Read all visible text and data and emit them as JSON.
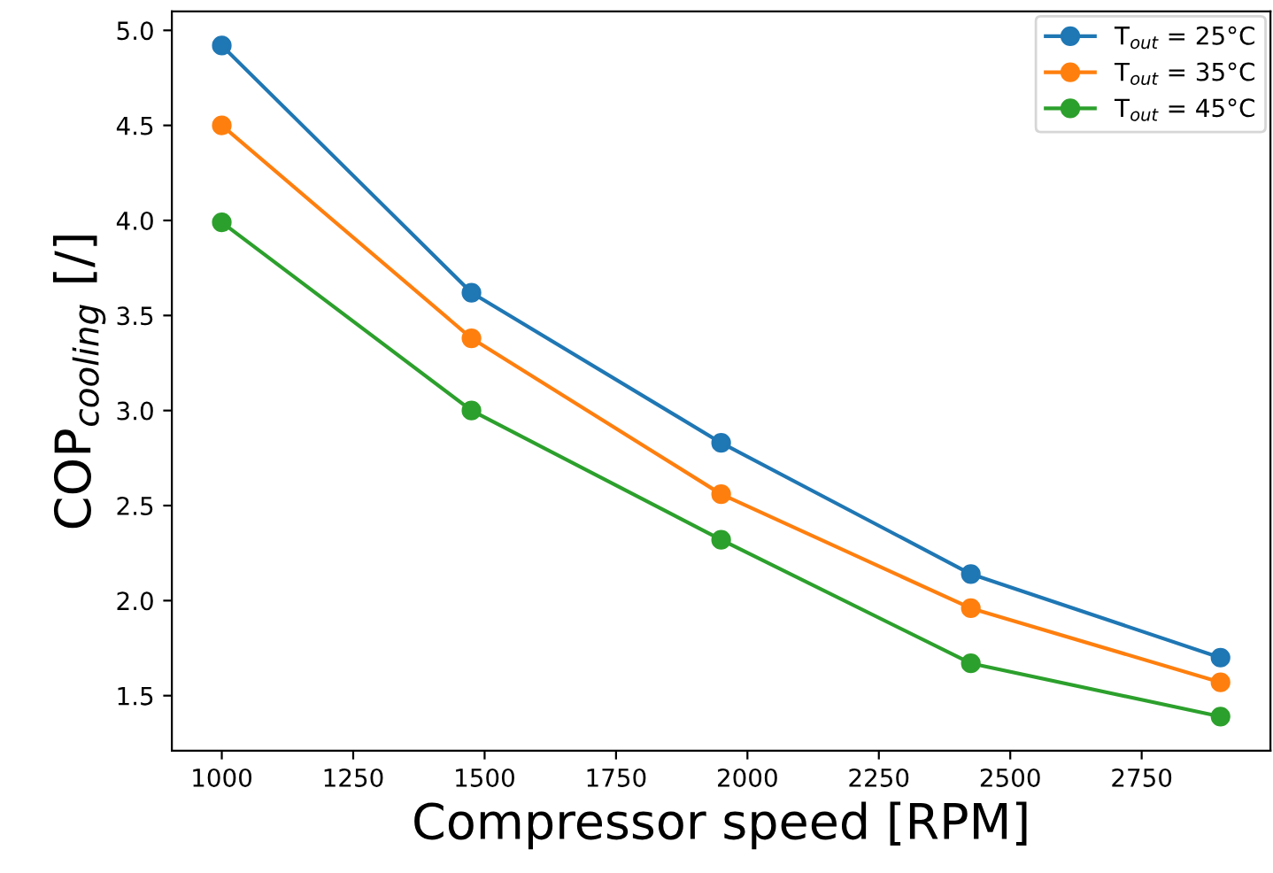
{
  "chart_data": {
    "type": "line",
    "xlabel": "Compressor speed [RPM]",
    "ylabel": "COP$_{cooling}$ [/]",
    "x": [
      1000,
      1475,
      1950,
      2425,
      2900
    ],
    "series": [
      {
        "name": "T$_{out}$ = 25°C",
        "color": "#1f77b4",
        "values": [
          4.92,
          3.62,
          2.83,
          2.14,
          1.7
        ]
      },
      {
        "name": "T$_{out}$ = 35°C",
        "color": "#ff7f0e",
        "values": [
          4.5,
          3.38,
          2.56,
          1.96,
          1.57
        ]
      },
      {
        "name": "T$_{out}$ = 45°C",
        "color": "#2ca02c",
        "values": [
          3.99,
          3.0,
          2.32,
          1.67,
          1.39
        ]
      }
    ],
    "xlim": [
      905,
      2995
    ],
    "ylim": [
      1.21,
      5.1
    ],
    "xticks": [
      1000,
      1250,
      1500,
      1750,
      2000,
      2250,
      2500,
      2750
    ],
    "yticks": [
      {
        "value": 1.5,
        "label": "1.5"
      },
      {
        "value": 2.0,
        "label": "2.0"
      },
      {
        "value": 2.5,
        "label": "2.5"
      },
      {
        "value": 3.0,
        "label": "3.0"
      },
      {
        "value": 3.5,
        "label": "3.5"
      },
      {
        "value": 4.0,
        "label": "4.0"
      },
      {
        "value": 4.5,
        "label": "4.5"
      },
      {
        "value": 5.0,
        "label": "5.0"
      }
    ],
    "legend": "top right",
    "marker": "circle",
    "line_style": "solid"
  }
}
